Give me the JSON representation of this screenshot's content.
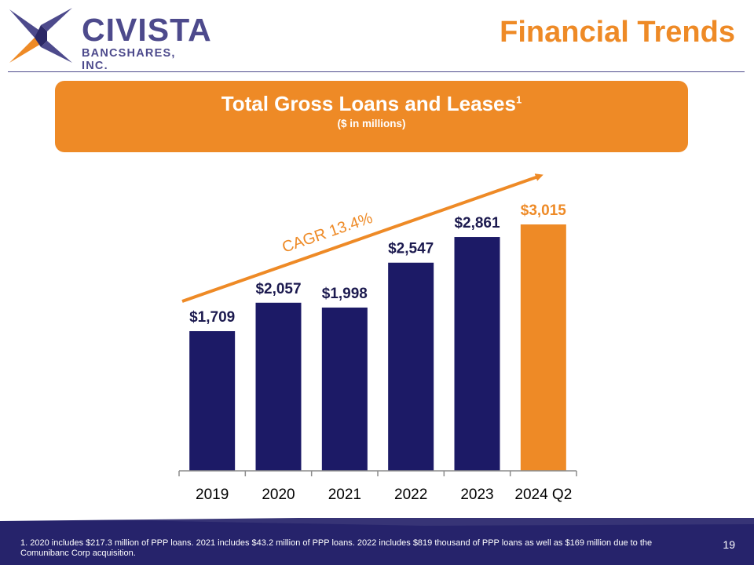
{
  "logo": {
    "name": "CIVISTA",
    "subtitle": "BANCSHARES, INC.",
    "colors": {
      "purple": "#4d4a8c",
      "orange": "#ee8a26",
      "dark": "#2b2866"
    }
  },
  "header": {
    "title": "Financial Trends"
  },
  "banner": {
    "title": "Total Gross Loans and Leases",
    "superscript": "1",
    "subtitle": "($ in millions)"
  },
  "chart_data": {
    "type": "bar",
    "categories": [
      "2019",
      "2020",
      "2021",
      "2022",
      "2023",
      "2024 Q2"
    ],
    "values": [
      1709,
      2057,
      1998,
      2547,
      2861,
      3015
    ],
    "labels": [
      "$1,709",
      "$2,057",
      "$1,998",
      "$2,547",
      "$2,861",
      "$3,015"
    ],
    "colors": [
      "#1c1a66",
      "#1c1a66",
      "#1c1a66",
      "#1c1a66",
      "#1c1a66",
      "#ee8a26"
    ],
    "highlight_label_color": "#ee8a26",
    "annotation": "CAGR 13.4%",
    "ylim": [
      0,
      3015
    ],
    "grid": false
  },
  "footer": {
    "footnote": "1.  2020 includes $217.3 million of PPP loans. 2021 includes $43.2 million of PPP loans. 2022 includes $819 thousand of PPP loans as well as $169 million due to the Comunibanc Corp acquisition.",
    "page_number": "19",
    "band_color": "#26236b"
  }
}
